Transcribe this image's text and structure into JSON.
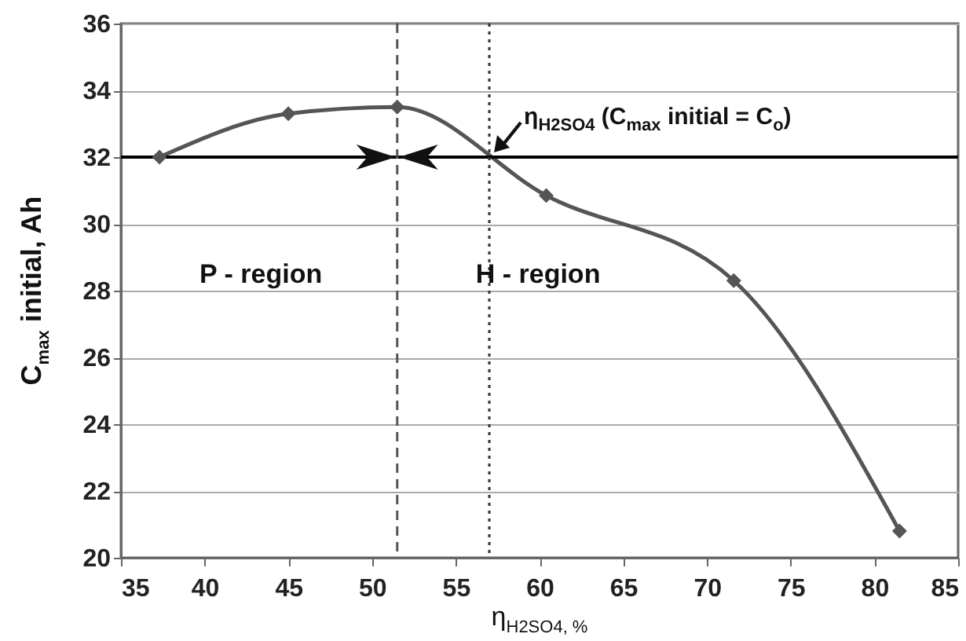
{
  "chart_data": {
    "type": "line",
    "xlabel": "η$_{H2SO4, %}$",
    "ylabel": "C$_{max}$ initial, Ah",
    "x": [
      37.3,
      45,
      51.5,
      60.4,
      71.6,
      81.5
    ],
    "series": [
      {
        "color": "#555555",
        "values": [
          32.0,
          33.3,
          33.5,
          30.85,
          28.3,
          20.8
        ]
      }
    ],
    "xlim": [
      35,
      85
    ],
    "xticks": [
      35,
      40,
      45,
      50,
      55,
      60,
      65,
      70,
      75,
      80,
      85
    ],
    "ylim": [
      20,
      36
    ],
    "yticks": [
      20,
      22,
      24,
      26,
      28,
      30,
      32,
      34,
      36
    ],
    "grid": "y",
    "marker": "diamond",
    "line_style": "solid",
    "ref_lines": [
      {
        "axis": "y",
        "value": 32,
        "color": "#000000",
        "line_style": "solid"
      },
      {
        "axis": "x",
        "value": 51.5,
        "color": "#555555",
        "line_style": "dashed"
      },
      {
        "axis": "x",
        "value": 57,
        "color": "#333333",
        "line_style": "dotted"
      }
    ],
    "annotations": [
      "P - region",
      "H - region",
      {
        "text": "η$_{H2SO4}$ (C$_{max}$ initial = C$_{o}$)",
        "x": 57,
        "y": 32
      }
    ]
  }
}
